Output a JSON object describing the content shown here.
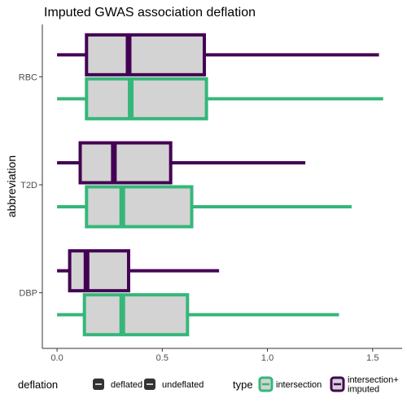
{
  "chart_data": {
    "type": "boxplot",
    "title": "Imputed GWAS association deflation",
    "xlabel": "",
    "ylabel": "abbreviation",
    "xlim": [
      -0.07,
      1.64
    ],
    "xticks": [
      0.0,
      0.5,
      1.0,
      1.5
    ],
    "xtick_labels": [
      "0.0",
      "0.5",
      "1.0",
      "1.5"
    ],
    "categories": [
      "RBC",
      "T2D",
      "DBP"
    ],
    "series": [
      {
        "name": "intersection+\nimputed",
        "color": "#440154",
        "boxes": {
          "RBC": {
            "min": 0.0,
            "q1": 0.14,
            "median": 0.34,
            "q3": 0.7,
            "max": 1.53
          },
          "T2D": {
            "min": 0.0,
            "q1": 0.11,
            "median": 0.27,
            "q3": 0.54,
            "max": 1.18
          },
          "DBP": {
            "min": 0.0,
            "q1": 0.06,
            "median": 0.14,
            "q3": 0.34,
            "max": 0.77
          }
        }
      },
      {
        "name": "intersection",
        "color": "#35B779",
        "boxes": {
          "RBC": {
            "min": 0.0,
            "q1": 0.14,
            "median": 0.35,
            "q3": 0.71,
            "max": 1.55
          },
          "T2D": {
            "min": 0.0,
            "q1": 0.14,
            "median": 0.31,
            "q3": 0.64,
            "max": 1.4
          },
          "DBP": {
            "min": 0.0,
            "q1": 0.13,
            "median": 0.31,
            "q3": 0.62,
            "max": 1.34
          }
        }
      }
    ],
    "box_fill": "#D3D3D3",
    "legend": {
      "position": "bottom",
      "deflation": {
        "title": "deflation",
        "items": [
          "deflated",
          "undeflated"
        ],
        "key_color": "#333333"
      },
      "type": {
        "title": "type",
        "items": [
          "intersection",
          "intersection+\nimputed"
        ],
        "colors": [
          "#35B779",
          "#440154"
        ]
      }
    },
    "grid": false
  }
}
